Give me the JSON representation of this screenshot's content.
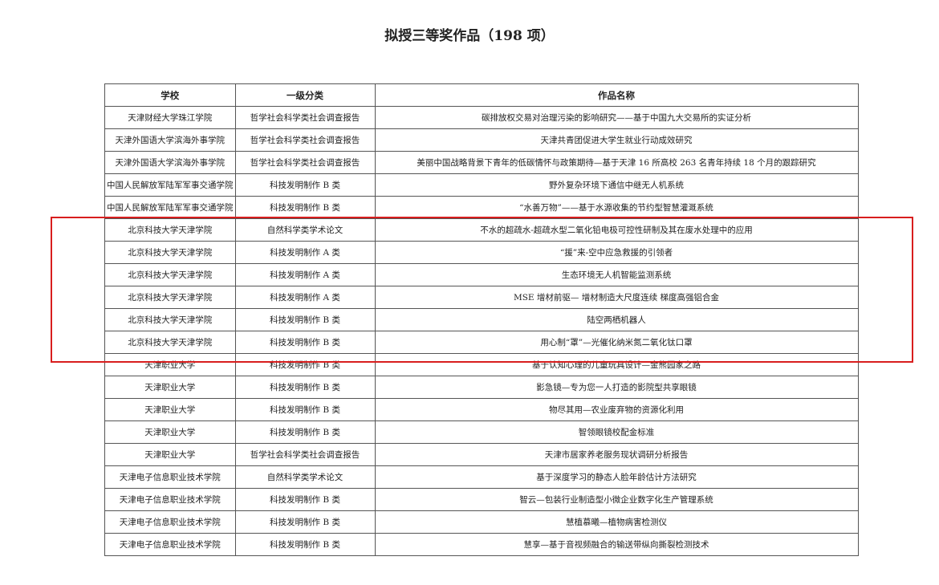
{
  "header": {
    "title": "拟授三等奖作品（198 项）"
  },
  "table": {
    "columns": [
      "学校",
      "一级分类",
      "作品名称"
    ],
    "rows": [
      [
        "天津财经大学珠江学院",
        "哲学社会科学类社会调查报告",
        "碳排放权交易对治理污染的影响研究——基于中国九大交易所的实证分析"
      ],
      [
        "天津外国语大学滨海外事学院",
        "哲学社会科学类社会调查报告",
        "天津共青团促进大学生就业行动成效研究"
      ],
      [
        "天津外国语大学滨海外事学院",
        "哲学社会科学类社会调查报告",
        "美丽中国战略背景下青年的低碳情怀与政策期待—基于天津 16 所高校 263 名青年持续 18 个月的跟踪研究"
      ],
      [
        "中国人民解放军陆军军事交通学院",
        "科技发明制作 B 类",
        "野外复杂环境下通信中继无人机系统"
      ],
      [
        "中国人民解放军陆军军事交通学院",
        "科技发明制作 B 类",
        "“水善万物”——基于水源收集的节约型智慧灌溉系统"
      ],
      [
        "北京科技大学天津学院",
        "自然科学类学术论文",
        "不水的超疏水-超疏水型二氧化铅电极可控性研制及其在废水处理中的应用"
      ],
      [
        "北京科技大学天津学院",
        "科技发明制作 A 类",
        "“援”来-空中应急救援的引领者"
      ],
      [
        "北京科技大学天津学院",
        "科技发明制作 A 类",
        "生态环境无人机智能监测系统"
      ],
      [
        "北京科技大学天津学院",
        "科技发明制作 A 类",
        "MSE 增材前驱— 增材制造大尺度连续 梯度高强铝合金"
      ],
      [
        "北京科技大学天津学院",
        "科技发明制作 B 类",
        "陆空两栖机器人"
      ],
      [
        "北京科技大学天津学院",
        "科技发明制作 B 类",
        "用心制“罩”—光催化纳米氮二氧化钛口罩"
      ],
      [
        "天津职业大学",
        "科技发明制作 B 类",
        "基于认知心理的儿童玩具设计—金熊园家之路"
      ],
      [
        "天津职业大学",
        "科技发明制作 B 类",
        "影急镜—专为您一人打造的影院型共享眼镜"
      ],
      [
        "天津职业大学",
        "科技发明制作 B 类",
        "物尽其用—农业废弃物的资源化利用"
      ],
      [
        "天津职业大学",
        "科技发明制作 B 类",
        "智领眼镜校配金标准"
      ],
      [
        "天津职业大学",
        "哲学社会科学类社会调查报告",
        "天津市居家养老服务现状调研分析报告"
      ],
      [
        "天津电子信息职业技术学院",
        "自然科学类学术论文",
        "基于深度学习的静态人脸年龄估计方法研究"
      ],
      [
        "天津电子信息职业技术学院",
        "科技发明制作 B 类",
        "智云—包装行业制造型小微企业数字化生产管理系统"
      ],
      [
        "天津电子信息职业技术学院",
        "科技发明制作 B 类",
        "慧植慕曦—植物病害检测仪"
      ],
      [
        "天津电子信息职业技术学院",
        "科技发明制作 B 类",
        "慧享—基于音视频融合的输送带纵向撕裂检测技术"
      ]
    ]
  }
}
